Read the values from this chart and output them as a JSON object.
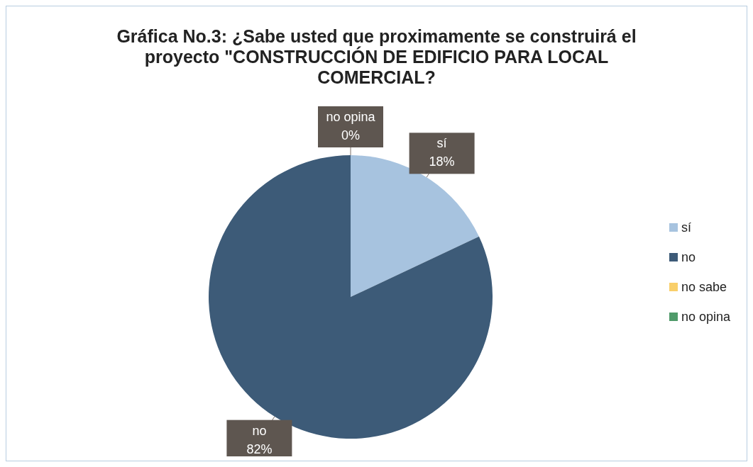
{
  "chart_data": {
    "type": "pie",
    "title": "Gráfica No.3: ¿Sabe usted que proximamente se construirá el proyecto \"CONSTRUCCIÓN DE EDIFICIO PARA LOCAL COMERCIAL?",
    "categories": [
      "sí",
      "no",
      "no  sabe",
      "no opina"
    ],
    "values": [
      18,
      82,
      0,
      0
    ],
    "colors": [
      "#a7c3df",
      "#3d5b78",
      "#f9cf6a",
      "#4f9a6a"
    ],
    "value_labels": [
      "18%",
      "82%",
      null,
      "0%"
    ],
    "legend": "right"
  }
}
